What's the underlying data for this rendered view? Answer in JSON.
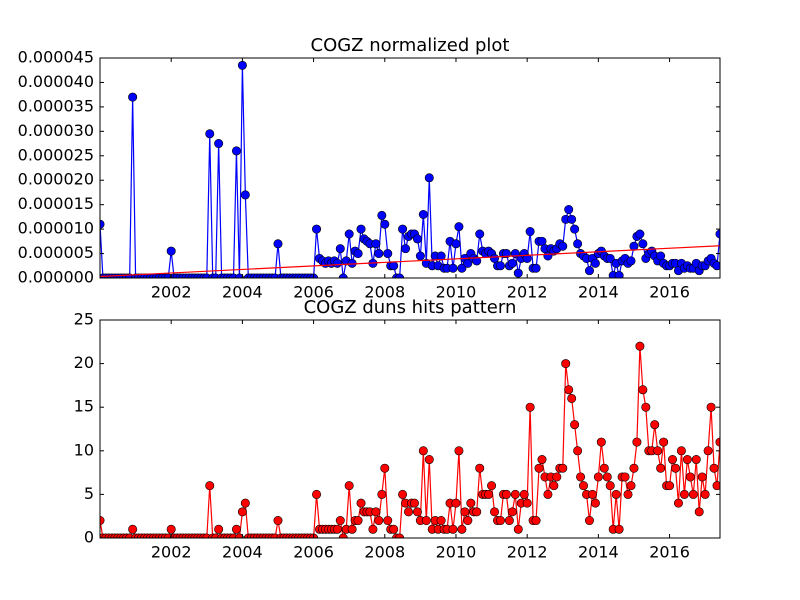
{
  "chart_data": [
    {
      "type": "line",
      "title": "COGZ normalized plot",
      "x": [
        2000,
        2000.083,
        2000.167,
        2000.25,
        2000.333,
        2000.417,
        2000.5,
        2000.583,
        2000.667,
        2000.75,
        2000.833,
        2000.917,
        2001,
        2001.083,
        2001.167,
        2001.25,
        2001.333,
        2001.417,
        2001.5,
        2001.583,
        2001.667,
        2001.75,
        2001.833,
        2001.917,
        2002,
        2002.083,
        2002.167,
        2002.25,
        2002.333,
        2002.417,
        2002.5,
        2002.583,
        2002.667,
        2002.75,
        2002.833,
        2002.917,
        2003,
        2003.083,
        2003.167,
        2003.25,
        2003.333,
        2003.417,
        2003.5,
        2003.583,
        2003.667,
        2003.75,
        2003.833,
        2003.917,
        2004,
        2004.083,
        2004.167,
        2004.25,
        2004.333,
        2004.417,
        2004.5,
        2004.583,
        2004.667,
        2004.75,
        2004.833,
        2004.917,
        2005,
        2005.083,
        2005.167,
        2005.25,
        2005.333,
        2005.417,
        2005.5,
        2005.583,
        2005.667,
        2005.75,
        2005.833,
        2005.917,
        2006,
        2006.083,
        2006.167,
        2006.25,
        2006.333,
        2006.417,
        2006.5,
        2006.583,
        2006.667,
        2006.75,
        2006.833,
        2006.917,
        2007,
        2007.083,
        2007.167,
        2007.25,
        2007.333,
        2007.417,
        2007.5,
        2007.583,
        2007.667,
        2007.75,
        2007.833,
        2007.917,
        2008,
        2008.083,
        2008.167,
        2008.25,
        2008.333,
        2008.417,
        2008.5,
        2008.583,
        2008.667,
        2008.75,
        2008.833,
        2008.917,
        2009,
        2009.083,
        2009.167,
        2009.25,
        2009.333,
        2009.417,
        2009.5,
        2009.583,
        2009.667,
        2009.75,
        2009.833,
        2009.917,
        2010,
        2010.083,
        2010.167,
        2010.25,
        2010.333,
        2010.417,
        2010.5,
        2010.583,
        2010.667,
        2010.75,
        2010.833,
        2010.917,
        2011,
        2011.083,
        2011.167,
        2011.25,
        2011.333,
        2011.417,
        2011.5,
        2011.583,
        2011.667,
        2011.75,
        2011.833,
        2011.917,
        2012,
        2012.083,
        2012.167,
        2012.25,
        2012.333,
        2012.417,
        2012.5,
        2012.583,
        2012.667,
        2012.75,
        2012.833,
        2012.917,
        2013,
        2013.083,
        2013.167,
        2013.25,
        2013.333,
        2013.417,
        2013.5,
        2013.583,
        2013.667,
        2013.75,
        2013.833,
        2013.917,
        2014,
        2014.083,
        2014.167,
        2014.25,
        2014.333,
        2014.417,
        2014.5,
        2014.583,
        2014.667,
        2014.75,
        2014.833,
        2014.917,
        2015,
        2015.083,
        2015.167,
        2015.25,
        2015.333,
        2015.417,
        2015.5,
        2015.583,
        2015.667,
        2015.75,
        2015.833,
        2015.917,
        2016,
        2016.083,
        2016.167,
        2016.25,
        2016.333,
        2016.417,
        2016.5,
        2016.583,
        2016.667,
        2016.75,
        2016.833,
        2016.917,
        2017,
        2017.083,
        2017.167,
        2017.25,
        2017.333,
        2017.417
      ],
      "series": [
        {
          "color": "#0000ff",
          "values": [
            1.1e-05,
            0,
            0,
            0,
            0,
            0,
            0,
            0,
            0,
            0,
            0,
            3.7e-05,
            0,
            0,
            0,
            0,
            0,
            0,
            0,
            0,
            0,
            0,
            0,
            0,
            5.5e-06,
            0,
            0,
            0,
            0,
            0,
            0,
            0,
            0,
            0,
            0,
            0,
            0,
            2.95e-05,
            0,
            0,
            2.75e-05,
            0,
            0,
            0,
            0,
            0,
            2.6e-05,
            0,
            4.35e-05,
            1.7e-05,
            0,
            0,
            0,
            0,
            0,
            0,
            0,
            0,
            0,
            0,
            7e-06,
            0,
            0,
            0,
            0,
            0,
            0,
            0,
            0,
            0,
            0,
            0,
            0,
            1e-05,
            4e-06,
            3.5e-06,
            3e-06,
            3.5e-06,
            3e-06,
            3.5e-06,
            3e-06,
            6e-06,
            0,
            3.5e-06,
            9e-06,
            3e-06,
            5.5e-06,
            5e-06,
            1e-05,
            8e-06,
            7.5e-06,
            7e-06,
            3e-06,
            7e-06,
            5e-06,
            1.28e-05,
            1.1e-05,
            5e-06,
            2.5e-06,
            2.5e-06,
            0,
            0,
            1e-05,
            6e-06,
            8.5e-06,
            9e-06,
            9e-06,
            8e-06,
            4.5e-06,
            1.3e-05,
            3e-06,
            2.05e-05,
            2.5e-06,
            4.5e-06,
            2.5e-06,
            4.5e-06,
            2e-06,
            2e-06,
            7.5e-06,
            2e-06,
            7e-06,
            1.05e-05,
            2e-06,
            4e-06,
            3e-06,
            5e-06,
            4e-06,
            3.5e-06,
            9e-06,
            5.5e-06,
            5e-06,
            5.5e-06,
            5e-06,
            4e-06,
            2.5e-06,
            2.5e-06,
            5e-06,
            5e-06,
            2.5e-06,
            3e-06,
            5e-06,
            1e-06,
            4e-06,
            5e-06,
            4e-06,
            9.5e-06,
            2e-06,
            2e-06,
            7.5e-06,
            7.5e-06,
            6e-06,
            4.5e-06,
            6e-06,
            5.5e-06,
            6e-06,
            7e-06,
            6.5e-06,
            1.2e-05,
            1.4e-05,
            1.2e-05,
            1e-05,
            7e-06,
            5e-06,
            4.5e-06,
            4e-06,
            1.5e-06,
            4e-06,
            3e-06,
            5e-06,
            5.5e-06,
            4.5e-06,
            4e-06,
            4e-06,
            5e-07,
            3e-06,
            5e-07,
            3.5e-06,
            4e-06,
            3e-06,
            3.5e-06,
            6.5e-06,
            8.5e-06,
            9e-06,
            7e-06,
            4e-06,
            5e-06,
            5.5e-06,
            4.5e-06,
            3.5e-06,
            4.5e-06,
            3e-06,
            2.5e-06,
            2.5e-06,
            3e-06,
            3e-06,
            1.5e-06,
            3e-06,
            2e-06,
            2.5e-06,
            2e-06,
            2e-06,
            3e-06,
            1.5e-06,
            2.5e-06,
            2.5e-06,
            3.5e-06,
            4e-06,
            3e-06,
            2.5e-06,
            9e-06
          ]
        }
      ],
      "trend_line": {
        "color": "#ff0000",
        "x": [
          2000,
          2017.417
        ],
        "values": [
          3e-07,
          6.6e-06
        ]
      },
      "xlim": [
        2000,
        2017.417
      ],
      "xticks": [
        2002,
        2004,
        2006,
        2008,
        2010,
        2012,
        2014,
        2016
      ],
      "ylim": [
        0,
        4.5e-05
      ],
      "yticks": [
        {
          "value": 0,
          "label": "0.000000"
        },
        {
          "value": 5e-06,
          "label": "0.000005"
        },
        {
          "value": 1e-05,
          "label": "0.000010"
        },
        {
          "value": 1.5e-05,
          "label": "0.000015"
        },
        {
          "value": 2e-05,
          "label": "0.000020"
        },
        {
          "value": 2.5e-05,
          "label": "0.000025"
        },
        {
          "value": 3e-05,
          "label": "0.000030"
        },
        {
          "value": 3.5e-05,
          "label": "0.000035"
        },
        {
          "value": 4e-05,
          "label": "0.000040"
        },
        {
          "value": 4.5e-05,
          "label": "0.000045"
        }
      ]
    },
    {
      "type": "line",
      "title": "COGZ duns hits pattern",
      "x": [
        2000,
        2000.083,
        2000.167,
        2000.25,
        2000.333,
        2000.417,
        2000.5,
        2000.583,
        2000.667,
        2000.75,
        2000.833,
        2000.917,
        2001,
        2001.083,
        2001.167,
        2001.25,
        2001.333,
        2001.417,
        2001.5,
        2001.583,
        2001.667,
        2001.75,
        2001.833,
        2001.917,
        2002,
        2002.083,
        2002.167,
        2002.25,
        2002.333,
        2002.417,
        2002.5,
        2002.583,
        2002.667,
        2002.75,
        2002.833,
        2002.917,
        2003,
        2003.083,
        2003.167,
        2003.25,
        2003.333,
        2003.417,
        2003.5,
        2003.583,
        2003.667,
        2003.75,
        2003.833,
        2003.917,
        2004,
        2004.083,
        2004.167,
        2004.25,
        2004.333,
        2004.417,
        2004.5,
        2004.583,
        2004.667,
        2004.75,
        2004.833,
        2004.917,
        2005,
        2005.083,
        2005.167,
        2005.25,
        2005.333,
        2005.417,
        2005.5,
        2005.583,
        2005.667,
        2005.75,
        2005.833,
        2005.917,
        2006,
        2006.083,
        2006.167,
        2006.25,
        2006.333,
        2006.417,
        2006.5,
        2006.583,
        2006.667,
        2006.75,
        2006.833,
        2006.917,
        2007,
        2007.083,
        2007.167,
        2007.25,
        2007.333,
        2007.417,
        2007.5,
        2007.583,
        2007.667,
        2007.75,
        2007.833,
        2007.917,
        2008,
        2008.083,
        2008.167,
        2008.25,
        2008.333,
        2008.417,
        2008.5,
        2008.583,
        2008.667,
        2008.75,
        2008.833,
        2008.917,
        2009,
        2009.083,
        2009.167,
        2009.25,
        2009.333,
        2009.417,
        2009.5,
        2009.583,
        2009.667,
        2009.75,
        2009.833,
        2009.917,
        2010,
        2010.083,
        2010.167,
        2010.25,
        2010.333,
        2010.417,
        2010.5,
        2010.583,
        2010.667,
        2010.75,
        2010.833,
        2010.917,
        2011,
        2011.083,
        2011.167,
        2011.25,
        2011.333,
        2011.417,
        2011.5,
        2011.583,
        2011.667,
        2011.75,
        2011.833,
        2011.917,
        2012,
        2012.083,
        2012.167,
        2012.25,
        2012.333,
        2012.417,
        2012.5,
        2012.583,
        2012.667,
        2012.75,
        2012.833,
        2012.917,
        2013,
        2013.083,
        2013.167,
        2013.25,
        2013.333,
        2013.417,
        2013.5,
        2013.583,
        2013.667,
        2013.75,
        2013.833,
        2013.917,
        2014,
        2014.083,
        2014.167,
        2014.25,
        2014.333,
        2014.417,
        2014.5,
        2014.583,
        2014.667,
        2014.75,
        2014.833,
        2014.917,
        2015,
        2015.083,
        2015.167,
        2015.25,
        2015.333,
        2015.417,
        2015.5,
        2015.583,
        2015.667,
        2015.75,
        2015.833,
        2015.917,
        2016,
        2016.083,
        2016.167,
        2016.25,
        2016.333,
        2016.417,
        2016.5,
        2016.583,
        2016.667,
        2016.75,
        2016.833,
        2016.917,
        2017,
        2017.083,
        2017.167,
        2017.25,
        2017.333,
        2017.417
      ],
      "series": [
        {
          "color": "#ff0000",
          "values": [
            2,
            0,
            0,
            0,
            0,
            0,
            0,
            0,
            0,
            0,
            0,
            1,
            0,
            0,
            0,
            0,
            0,
            0,
            0,
            0,
            0,
            0,
            0,
            0,
            1,
            0,
            0,
            0,
            0,
            0,
            0,
            0,
            0,
            0,
            0,
            0,
            0,
            6,
            0,
            0,
            1,
            0,
            0,
            0,
            0,
            0,
            1,
            0,
            3,
            4,
            0,
            0,
            0,
            0,
            0,
            0,
            0,
            0,
            0,
            0,
            2,
            0,
            0,
            0,
            0,
            0,
            0,
            0,
            0,
            0,
            0,
            0,
            0,
            5,
            1,
            1,
            1,
            1,
            1,
            1,
            1,
            2,
            0,
            1,
            6,
            1,
            2,
            2,
            4,
            3,
            3,
            3,
            1,
            3,
            2,
            5,
            8,
            2,
            1,
            1,
            0,
            0,
            5,
            4,
            3,
            4,
            4,
            3,
            2,
            10,
            2,
            9,
            1,
            2,
            1,
            2,
            1,
            1,
            4,
            1,
            4,
            10,
            1,
            3,
            2,
            4,
            3,
            3,
            8,
            5,
            5,
            5,
            6,
            3,
            2,
            2,
            5,
            5,
            2,
            3,
            5,
            1,
            4,
            5,
            4,
            15,
            2,
            2,
            8,
            9,
            7,
            5,
            7,
            6,
            7,
            8,
            8,
            20,
            17,
            16,
            13,
            10,
            7,
            6,
            5,
            2,
            5,
            4,
            7,
            11,
            8,
            7,
            6,
            1,
            5,
            1,
            7,
            7,
            5,
            6,
            8,
            11,
            22,
            17,
            15,
            10,
            10,
            13,
            10,
            8,
            11,
            6,
            6,
            9,
            8,
            4,
            10,
            5,
            9,
            7,
            5,
            9,
            3,
            7,
            5,
            10,
            15,
            8,
            6,
            11
          ]
        }
      ],
      "xlim": [
        2000,
        2017.417
      ],
      "xticks": [
        2002,
        2004,
        2006,
        2008,
        2010,
        2012,
        2014,
        2016
      ],
      "ylim": [
        0,
        25
      ],
      "yticks": [
        0,
        5,
        10,
        15,
        20,
        25
      ]
    }
  ]
}
